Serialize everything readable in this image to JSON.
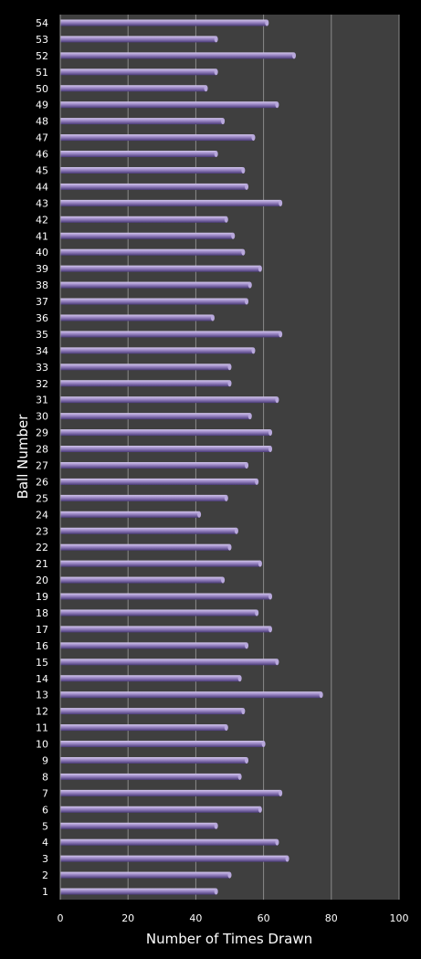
{
  "chart_data": {
    "type": "bar",
    "orientation": "horizontal",
    "xlabel": "Number of Times Drawn",
    "ylabel": "Ball Number",
    "xlim": [
      0,
      100
    ],
    "xticks": [
      0,
      20,
      40,
      60,
      80,
      100
    ],
    "grid": "vertical",
    "legend": "none",
    "colors": {
      "bar": "#9a86c4",
      "bar_dark": "#4a3a78",
      "plot_bg": "#3f3f3f",
      "grid": "#8a8a8a",
      "background": "#000000"
    },
    "categories": [
      "1",
      "2",
      "3",
      "4",
      "5",
      "6",
      "7",
      "8",
      "9",
      "10",
      "11",
      "12",
      "13",
      "14",
      "15",
      "16",
      "17",
      "18",
      "19",
      "20",
      "21",
      "22",
      "23",
      "24",
      "25",
      "26",
      "27",
      "28",
      "29",
      "30",
      "31",
      "32",
      "33",
      "34",
      "35",
      "36",
      "37",
      "38",
      "39",
      "40",
      "41",
      "42",
      "43",
      "44",
      "45",
      "46",
      "47",
      "48",
      "49",
      "50",
      "51",
      "52",
      "53",
      "54"
    ],
    "values": [
      46,
      50,
      67,
      64,
      46,
      59,
      65,
      53,
      55,
      60,
      49,
      54,
      77,
      53,
      64,
      55,
      62,
      58,
      62,
      48,
      59,
      50,
      52,
      41,
      49,
      58,
      55,
      62,
      62,
      56,
      64,
      50,
      50,
      57,
      65,
      45,
      55,
      56,
      59,
      54,
      51,
      49,
      65,
      55,
      54,
      46,
      57,
      48,
      64,
      43,
      46,
      69,
      46,
      61
    ]
  }
}
